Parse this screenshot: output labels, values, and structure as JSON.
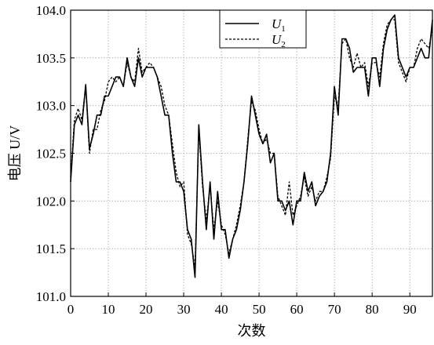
{
  "chart_data": {
    "type": "line",
    "xlabel": "次数",
    "ylabel": "电压 U/V",
    "xlim": [
      0,
      96
    ],
    "ylim": [
      101.0,
      104.0
    ],
    "x_ticks": [
      0,
      10,
      20,
      30,
      40,
      50,
      60,
      70,
      80,
      90
    ],
    "y_ticks": [
      "101.0",
      "101.5",
      "102.0",
      "102.5",
      "103.0",
      "103.5",
      "104.0"
    ],
    "grid": true,
    "legend_position": "top-center",
    "series": [
      {
        "name": "U1",
        "legend_main": "U",
        "legend_sub": "1",
        "style": "solid",
        "x": [
          0,
          1,
          2,
          3,
          4,
          5,
          6,
          7,
          8,
          9,
          10,
          11,
          12,
          13,
          14,
          15,
          16,
          17,
          18,
          19,
          20,
          21,
          22,
          23,
          24,
          25,
          26,
          27,
          28,
          29,
          30,
          31,
          32,
          33,
          34,
          35,
          36,
          37,
          38,
          39,
          40,
          41,
          42,
          43,
          44,
          45,
          46,
          47,
          48,
          49,
          50,
          51,
          52,
          53,
          54,
          55,
          56,
          57,
          58,
          59,
          60,
          61,
          62,
          63,
          64,
          65,
          66,
          67,
          68,
          69,
          70,
          71,
          72,
          73,
          74,
          75,
          76,
          77,
          78,
          79,
          80,
          81,
          82,
          83,
          84,
          85,
          86,
          87,
          88,
          89,
          90,
          91,
          92,
          93,
          94,
          95,
          96
        ],
        "values": [
          102.2,
          102.8,
          102.9,
          102.8,
          103.22,
          102.55,
          102.7,
          102.9,
          102.9,
          103.1,
          103.1,
          103.2,
          103.3,
          103.3,
          103.2,
          103.5,
          103.3,
          103.2,
          103.5,
          103.3,
          103.4,
          103.4,
          103.4,
          103.3,
          103.1,
          102.9,
          102.9,
          102.5,
          102.2,
          102.2,
          102.1,
          101.7,
          101.6,
          101.2,
          102.8,
          102.2,
          101.7,
          102.2,
          101.6,
          102.1,
          101.7,
          101.7,
          101.4,
          101.6,
          101.7,
          101.9,
          102.2,
          102.6,
          103.1,
          102.9,
          102.7,
          102.6,
          102.7,
          102.4,
          102.5,
          102.0,
          102.0,
          101.9,
          102.0,
          101.75,
          102.0,
          102.0,
          102.3,
          102.1,
          102.2,
          101.95,
          102.05,
          102.1,
          102.2,
          102.5,
          103.2,
          102.9,
          103.7,
          103.7,
          103.6,
          103.35,
          103.4,
          103.4,
          103.4,
          103.1,
          103.5,
          103.5,
          103.2,
          103.6,
          103.8,
          103.9,
          103.95,
          103.5,
          103.4,
          103.3,
          103.4,
          103.4,
          103.5,
          103.6,
          103.5,
          103.5,
          103.9
        ]
      },
      {
        "name": "U2",
        "legend_main": "U",
        "legend_sub": "2",
        "style": "dashed",
        "x": [
          0,
          1,
          2,
          3,
          4,
          5,
          6,
          7,
          8,
          9,
          10,
          11,
          12,
          13,
          14,
          15,
          16,
          17,
          18,
          19,
          20,
          21,
          22,
          23,
          24,
          25,
          26,
          27,
          28,
          29,
          30,
          31,
          32,
          33,
          34,
          35,
          36,
          37,
          38,
          39,
          40,
          41,
          42,
          43,
          44,
          45,
          46,
          47,
          48,
          49,
          50,
          51,
          52,
          53,
          54,
          55,
          56,
          57,
          58,
          59,
          60,
          61,
          62,
          63,
          64,
          65,
          66,
          67,
          68,
          69,
          70,
          71,
          72,
          73,
          74,
          75,
          76,
          77,
          78,
          79,
          80,
          81,
          82,
          83,
          84,
          85,
          86,
          87,
          88,
          89,
          90,
          91,
          92,
          93,
          94,
          95,
          96
        ],
        "values": [
          102.25,
          102.85,
          102.97,
          102.85,
          103.2,
          102.5,
          102.75,
          102.75,
          102.95,
          103.05,
          103.25,
          103.3,
          103.25,
          103.3,
          103.2,
          103.45,
          103.3,
          103.25,
          103.6,
          103.35,
          103.4,
          103.45,
          103.4,
          103.3,
          103.2,
          103.0,
          102.9,
          102.6,
          102.3,
          102.15,
          102.2,
          101.65,
          101.55,
          101.3,
          102.75,
          102.15,
          101.8,
          102.15,
          101.7,
          102.0,
          101.75,
          101.65,
          101.45,
          101.6,
          101.75,
          101.95,
          102.2,
          102.65,
          103.05,
          102.95,
          102.75,
          102.6,
          102.65,
          102.5,
          102.5,
          102.05,
          101.95,
          101.85,
          102.2,
          101.85,
          101.95,
          102.05,
          102.25,
          102.05,
          102.15,
          102.0,
          102.1,
          102.1,
          102.25,
          102.45,
          103.1,
          103.0,
          103.65,
          103.7,
          103.5,
          103.4,
          103.55,
          103.4,
          103.45,
          103.2,
          103.45,
          103.45,
          103.3,
          103.65,
          103.85,
          103.9,
          103.9,
          103.45,
          103.35,
          103.25,
          103.4,
          103.4,
          103.6,
          103.7,
          103.65,
          103.6,
          103.8
        ]
      }
    ]
  }
}
